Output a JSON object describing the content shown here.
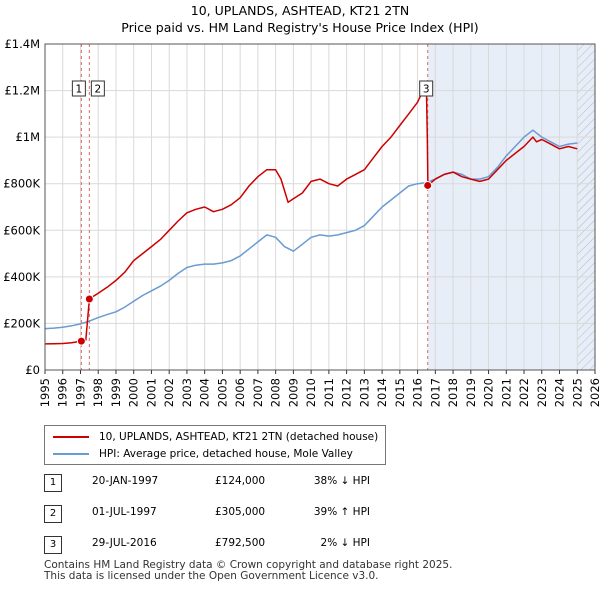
{
  "title_line1": "10, UPLANDS, ASHTEAD, KT21 2TN",
  "title_line2": "Price paid vs. HM Land Registry's House Price Index (HPI)",
  "colors": {
    "property": "#cc0000",
    "hpi": "#6a9bd1",
    "shade": "#e8eef8",
    "vline": "#e06666",
    "grid": "#d9d9d9"
  },
  "chart_data": {
    "type": "line",
    "title": "10, UPLANDS, ASHTEAD, KT21 2TN — Price paid vs. HM Land Registry's House Price Index (HPI)",
    "xlim": [
      1995,
      2026
    ],
    "ylim": [
      0,
      1400000
    ],
    "x_ticks": [
      1995,
      1996,
      1997,
      1998,
      1999,
      2000,
      2001,
      2002,
      2003,
      2004,
      2005,
      2006,
      2007,
      2008,
      2009,
      2010,
      2011,
      2012,
      2013,
      2014,
      2015,
      2016,
      2017,
      2018,
      2019,
      2020,
      2021,
      2022,
      2023,
      2024,
      2025,
      2026
    ],
    "x_tick_labels": [
      "1995",
      "1996",
      "1997",
      "1998",
      "1999",
      "2000",
      "2001",
      "2002",
      "2003",
      "2004",
      "2005",
      "2006",
      "2007",
      "2008",
      "2009",
      "2010",
      "2011",
      "2012",
      "2013",
      "2014",
      "2015",
      "2016",
      "2017",
      "2018",
      "2019",
      "2020",
      "2021",
      "2022",
      "2023",
      "2024",
      "2025",
      "2026"
    ],
    "y_ticks": [
      0,
      200000,
      400000,
      600000,
      800000,
      1000000,
      1200000,
      1400000
    ],
    "y_tick_labels": [
      "£0",
      "£200K",
      "£400K",
      "£600K",
      "£800K",
      "£1M",
      "£1.2M",
      "£1.4M"
    ],
    "grid": true,
    "shaded_region": [
      2016.57,
      2026
    ],
    "hatched_region": [
      2025.0,
      2026
    ],
    "series": [
      {
        "name": "10, UPLANDS, ASHTEAD, KT21 2TN (detached house)",
        "color": "#cc0000",
        "x": [
          1995.0,
          1995.5,
          1996.0,
          1996.5,
          1997.05,
          1997.3,
          1997.5,
          1997.6,
          1998.0,
          1998.5,
          1999.0,
          1999.5,
          2000.0,
          2000.5,
          2001.0,
          2001.5,
          2002.0,
          2002.5,
          2003.0,
          2003.5,
          2004.0,
          2004.5,
          2005.0,
          2005.5,
          2006.0,
          2006.5,
          2007.0,
          2007.5,
          2008.0,
          2008.3,
          2008.7,
          2009.0,
          2009.5,
          2010.0,
          2010.5,
          2011.0,
          2011.5,
          2012.0,
          2012.5,
          2013.0,
          2013.5,
          2014.0,
          2014.5,
          2015.0,
          2015.5,
          2016.0,
          2016.3,
          2016.5,
          2016.55,
          2016.58,
          2017.0,
          2017.5,
          2018.0,
          2018.5,
          2019.0,
          2019.5,
          2020.0,
          2020.5,
          2021.0,
          2021.5,
          2022.0,
          2022.5,
          2022.7,
          2023.0,
          2023.5,
          2024.0,
          2024.5,
          2025.0
        ],
        "values": [
          112000,
          113000,
          114000,
          117000,
          124000,
          128000,
          305000,
          310000,
          330000,
          355000,
          385000,
          420000,
          470000,
          500000,
          530000,
          560000,
          600000,
          640000,
          675000,
          690000,
          700000,
          680000,
          690000,
          710000,
          740000,
          790000,
          830000,
          860000,
          860000,
          820000,
          720000,
          735000,
          760000,
          810000,
          820000,
          800000,
          790000,
          820000,
          840000,
          860000,
          910000,
          960000,
          1000000,
          1050000,
          1100000,
          1150000,
          1200000,
          1190000,
          1000000,
          792500,
          820000,
          840000,
          850000,
          830000,
          820000,
          810000,
          820000,
          860000,
          900000,
          930000,
          960000,
          1000000,
          980000,
          990000,
          970000,
          950000,
          960000,
          950000
        ]
      },
      {
        "name": "HPI: Average price, detached house, Mole Valley",
        "color": "#6a9bd1",
        "x": [
          1995.0,
          1995.5,
          1996.0,
          1996.5,
          1997.0,
          1997.5,
          1998.0,
          1998.5,
          1999.0,
          1999.5,
          2000.0,
          2000.5,
          2001.0,
          2001.5,
          2002.0,
          2002.5,
          2003.0,
          2003.5,
          2004.0,
          2004.5,
          2005.0,
          2005.5,
          2006.0,
          2006.5,
          2007.0,
          2007.5,
          2008.0,
          2008.5,
          2009.0,
          2009.5,
          2010.0,
          2010.5,
          2011.0,
          2011.5,
          2012.0,
          2012.5,
          2013.0,
          2013.5,
          2014.0,
          2014.5,
          2015.0,
          2015.5,
          2016.0,
          2016.5,
          2017.0,
          2017.5,
          2018.0,
          2018.5,
          2019.0,
          2019.5,
          2020.0,
          2020.5,
          2021.0,
          2021.5,
          2022.0,
          2022.5,
          2023.0,
          2023.5,
          2024.0,
          2024.5,
          2025.0
        ],
        "values": [
          178000,
          180000,
          184000,
          190000,
          198000,
          210000,
          225000,
          238000,
          250000,
          270000,
          295000,
          320000,
          340000,
          360000,
          385000,
          415000,
          440000,
          450000,
          455000,
          455000,
          460000,
          470000,
          490000,
          520000,
          550000,
          580000,
          570000,
          530000,
          510000,
          540000,
          570000,
          580000,
          575000,
          580000,
          590000,
          600000,
          620000,
          660000,
          700000,
          730000,
          760000,
          790000,
          800000,
          805000,
          820000,
          840000,
          850000,
          840000,
          820000,
          820000,
          830000,
          870000,
          920000,
          960000,
          1000000,
          1030000,
          1000000,
          980000,
          960000,
          970000,
          975000
        ]
      }
    ],
    "transactions": [
      {
        "label": "1",
        "x": 1997.05,
        "value": 124000
      },
      {
        "label": "2",
        "x": 1997.5,
        "value": 305000
      },
      {
        "label": "3",
        "x": 2016.57,
        "value": 792500
      }
    ],
    "legend_position": "below"
  },
  "legend": {
    "property": "10, UPLANDS, ASHTEAD, KT21 2TN (detached house)",
    "hpi": "HPI: Average price, detached house, Mole Valley"
  },
  "table": [
    {
      "num": "1",
      "date": "20-JAN-1997",
      "price": "£124,000",
      "hpi": "38% ↓ HPI"
    },
    {
      "num": "2",
      "date": "01-JUL-1997",
      "price": "£305,000",
      "hpi": "39% ↑ HPI"
    },
    {
      "num": "3",
      "date": "29-JUL-2016",
      "price": "£792,500",
      "hpi": "2% ↓ HPI"
    }
  ],
  "footer": {
    "line1": "Contains HM Land Registry data © Crown copyright and database right 2025.",
    "line2": "This data is licensed under the Open Government Licence v3.0."
  }
}
